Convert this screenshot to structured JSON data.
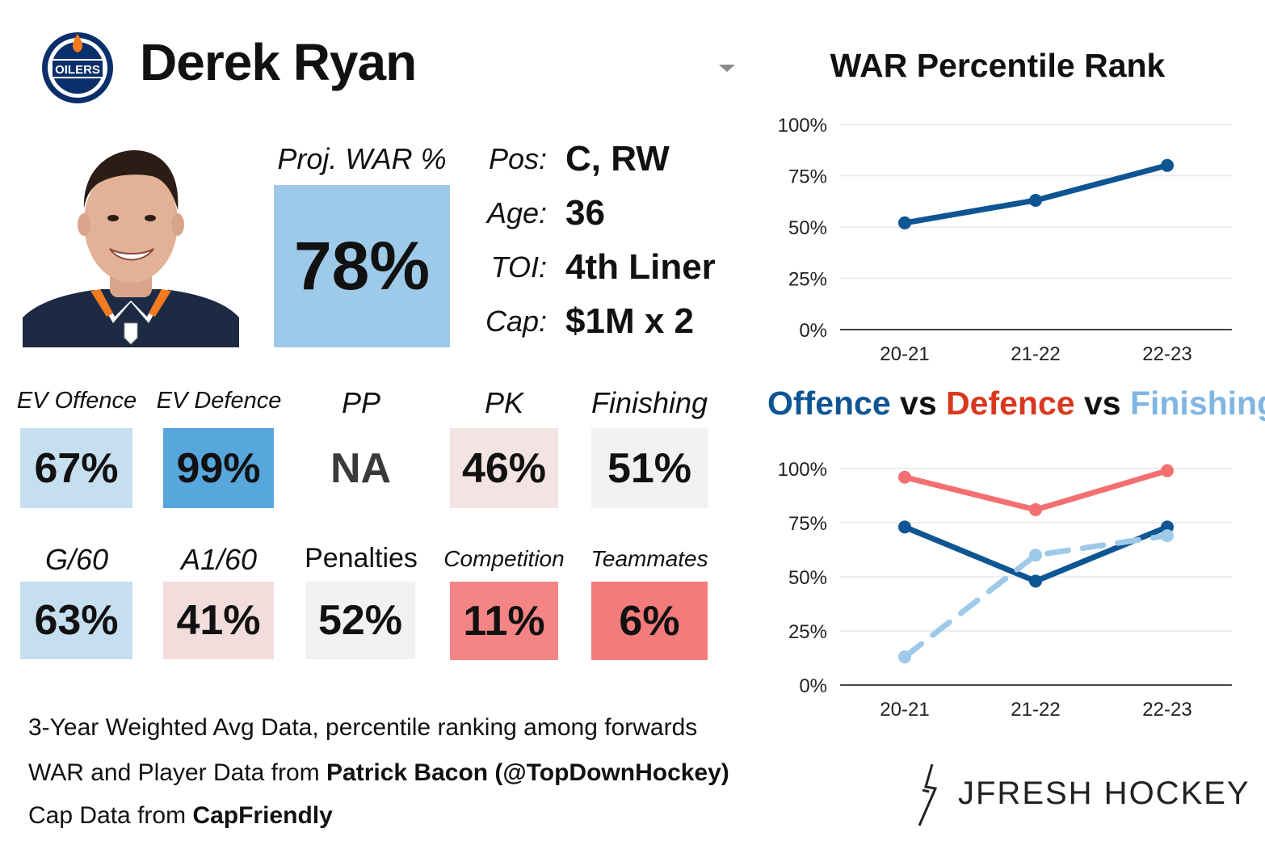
{
  "player": {
    "name": "Derek Ryan",
    "team_logo_text": "OILERS",
    "proj_war_label": "Proj. WAR %",
    "proj_war_value": "78%",
    "info": [
      {
        "label": "Pos:",
        "value": "C, RW"
      },
      {
        "label": "Age:",
        "value": "36"
      },
      {
        "label": "TOI:",
        "value": "4th Liner"
      },
      {
        "label": "Cap:",
        "value": "$1M x 2"
      }
    ]
  },
  "colors": {
    "strong_blue": "#57a6dc",
    "light_blue": "#c6dff0",
    "mid_blue": "#9ecae9",
    "neutral": "#f0f1f2",
    "light_red": "#f3e3e3",
    "red": "#f47b7b",
    "line_dark_blue": "#0e5593",
    "line_red": "#f47070",
    "line_light_blue": "#9ecae9"
  },
  "stats_row1": [
    {
      "label": "EV Offence",
      "value": "67%",
      "color": "#c6dff0"
    },
    {
      "label": "EV Defence",
      "value": "99%",
      "color": "#57a6dc"
    },
    {
      "label": "PP",
      "value": "NA",
      "color": "#ffffff"
    },
    {
      "label": "PK",
      "value": "46%",
      "color": "#f3e3e3"
    },
    {
      "label": "Finishing",
      "value": "51%",
      "color": "#f0f1f2"
    }
  ],
  "stats_row2": [
    {
      "label": "G/60",
      "value": "63%",
      "color": "#c6dff0"
    },
    {
      "label": "A1/60",
      "value": "41%",
      "color": "#f2dcdc"
    },
    {
      "label": "Penalties",
      "value": "52%",
      "color": "#f0f1f2"
    },
    {
      "label": "Competition",
      "value": "11%",
      "color": "#f58585"
    },
    {
      "label": "Teammates",
      "value": "6%",
      "color": "#f47b7b"
    }
  ],
  "footer": {
    "line1": "3-Year Weighted Avg Data, percentile ranking among forwards",
    "line2_prefix": "WAR and Player Data from ",
    "line2_bold": "Patrick Bacon (@TopDownHockey)",
    "line3_prefix": "Cap Data from ",
    "line3_bold": "CapFriendly"
  },
  "brand": "JFRESH HOCKEY",
  "chart_data": [
    {
      "type": "line",
      "title": "WAR Percentile Rank",
      "categories": [
        "20-21",
        "21-22",
        "22-23"
      ],
      "y_ticks": [
        "0%",
        "25%",
        "50%",
        "75%",
        "100%"
      ],
      "ylim": [
        0,
        100
      ],
      "grid": true,
      "series": [
        {
          "values": [
            52,
            63,
            80
          ],
          "color": "#0e5593",
          "dashed": false
        }
      ]
    },
    {
      "type": "line",
      "title_parts": [
        {
          "text": "Offence",
          "color": "#0e5593"
        },
        {
          "text": " vs ",
          "color": "#111111"
        },
        {
          "text": "Defence",
          "color": "#d9381e"
        },
        {
          "text": " vs ",
          "color": "#111111"
        },
        {
          "text": "Finishing",
          "color": "#7fb6e3"
        }
      ],
      "categories": [
        "20-21",
        "21-22",
        "22-23"
      ],
      "y_ticks": [
        "0%",
        "25%",
        "50%",
        "75%",
        "100%"
      ],
      "ylim": [
        0,
        100
      ],
      "grid": true,
      "series": [
        {
          "values": [
            96,
            81,
            99
          ],
          "color": "#f47070",
          "dashed": false
        },
        {
          "values": [
            73,
            48,
            73
          ],
          "color": "#0e5593",
          "dashed": false
        },
        {
          "values": [
            13,
            60,
            69
          ],
          "color": "#9ecae9",
          "dashed": true
        }
      ]
    }
  ]
}
